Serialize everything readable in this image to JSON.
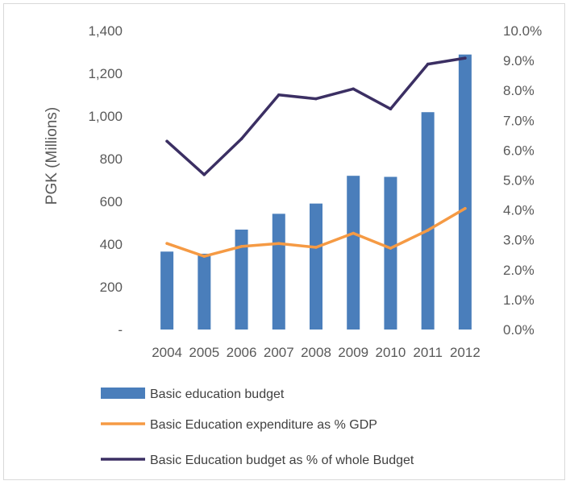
{
  "chart_data": {
    "type": "bar",
    "categories": [
      "2004",
      "2005",
      "2006",
      "2007",
      "2008",
      "2009",
      "2010",
      "2011",
      "2012"
    ],
    "ylabel": "PGK (Millions)",
    "ylim": [
      0,
      1400
    ],
    "y_ticks": [
      "-",
      "200",
      "400",
      "600",
      "800",
      "1,000",
      "1,200",
      "1,400"
    ],
    "y2lim": [
      0,
      10
    ],
    "y2_ticks": [
      "0.0%",
      "1.0%",
      "2.0%",
      "3.0%",
      "4.0%",
      "5.0%",
      "6.0%",
      "7.0%",
      "8.0%",
      "9.0%",
      "10.0%"
    ],
    "grid": true,
    "legend_position": "bottom",
    "series": [
      {
        "name": "Basic education budget",
        "type": "bar",
        "axis": "left",
        "color": "#4a7ebb",
        "values": [
          365,
          355,
          468,
          542,
          590,
          720,
          715,
          1018,
          1288
        ]
      },
      {
        "name": "Basic Education  expenditure as % GDP",
        "type": "line",
        "axis": "right",
        "color": "#f59a44",
        "values": [
          2.88,
          2.45,
          2.78,
          2.88,
          2.75,
          3.22,
          2.72,
          3.32,
          4.05
        ]
      },
      {
        "name": "Basic Education budget as % of whole Budget",
        "type": "line",
        "axis": "right",
        "color": "#3b2f63",
        "values": [
          6.3,
          5.18,
          6.38,
          7.85,
          7.72,
          8.05,
          7.38,
          8.88,
          9.08
        ]
      }
    ]
  }
}
